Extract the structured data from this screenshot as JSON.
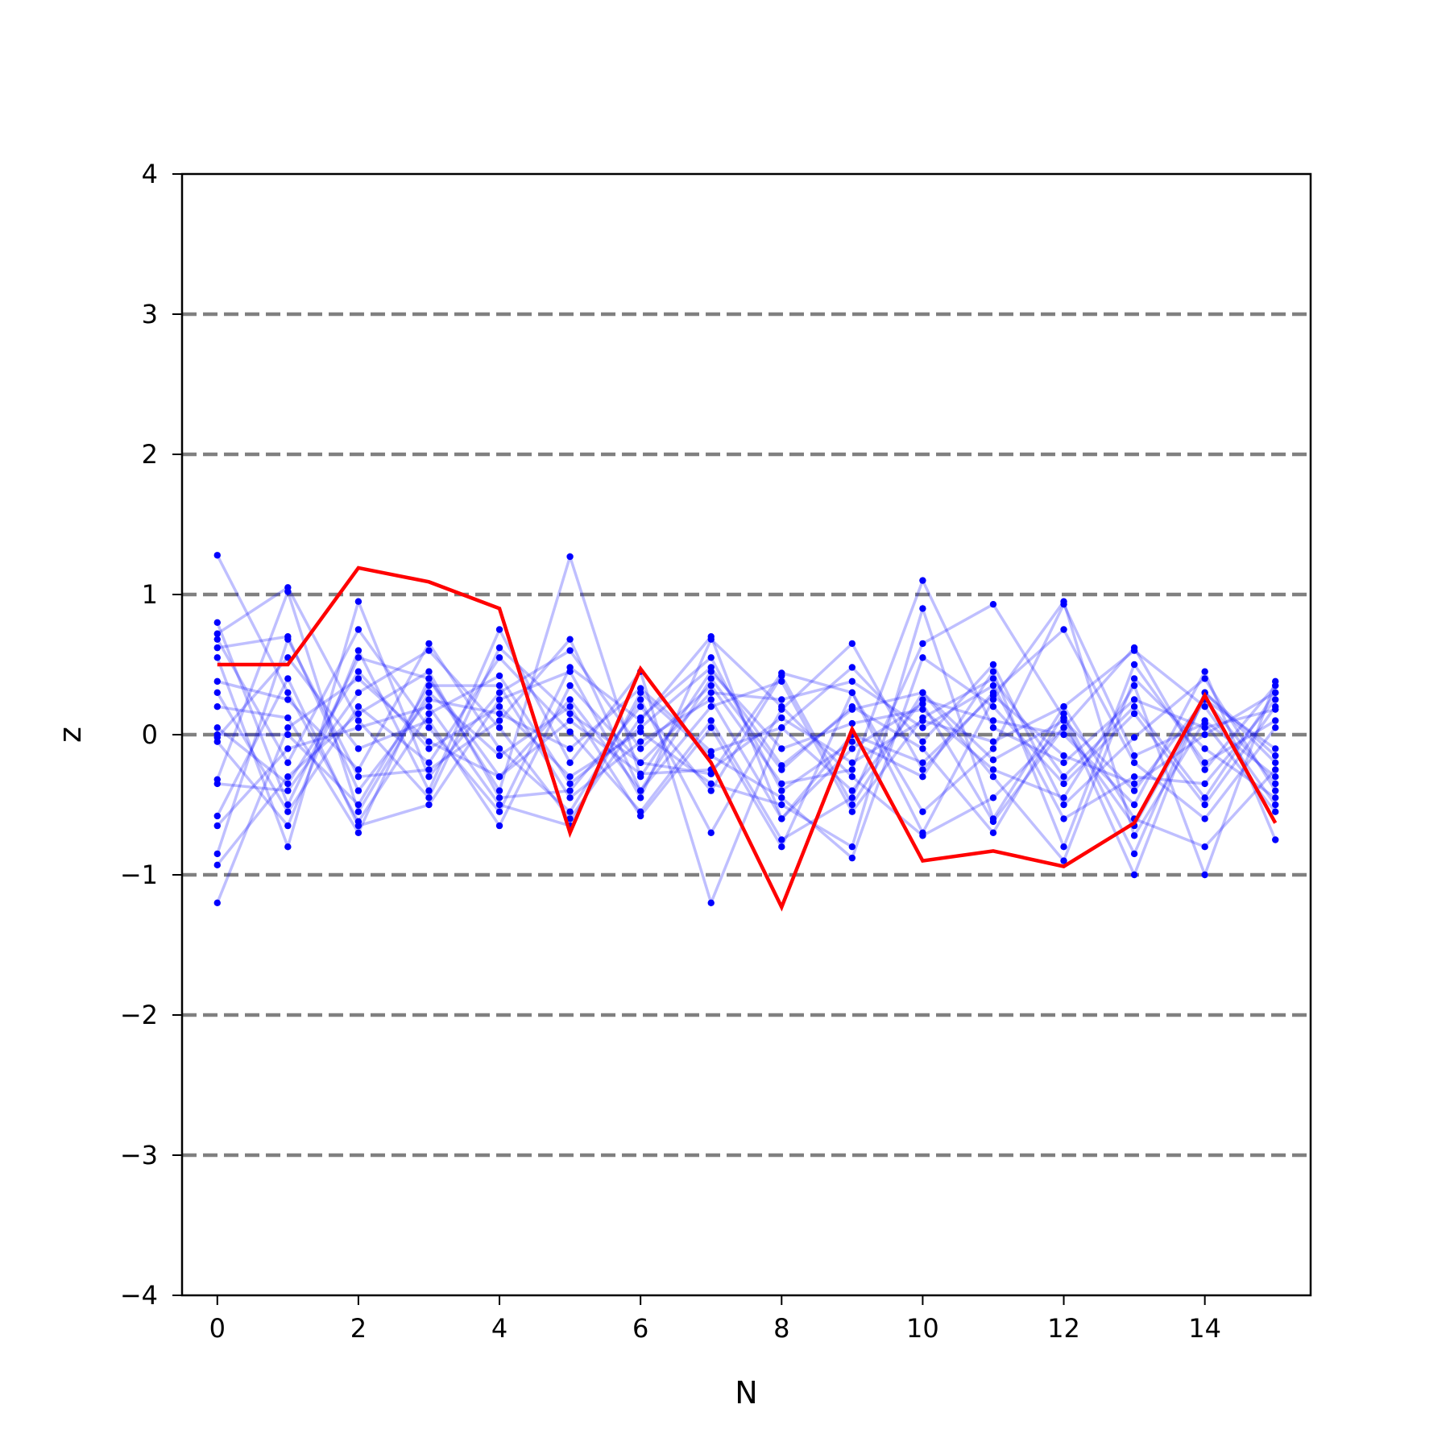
{
  "chart_data": {
    "type": "line",
    "xlabel": "N",
    "ylabel": "z",
    "xlim": [
      -0.5,
      15.5
    ],
    "ylim": [
      -4,
      4
    ],
    "x_ticks": [
      0,
      2,
      4,
      6,
      8,
      10,
      12,
      14
    ],
    "y_ticks": [
      -4,
      -3,
      -2,
      -1,
      0,
      1,
      2,
      3,
      4
    ],
    "y_tick_labels": [
      "−4",
      "−3",
      "−2",
      "−1",
      "0",
      "1",
      "2",
      "3",
      "4"
    ],
    "reference_lines": {
      "y": [
        -3,
        -2,
        -1,
        0,
        1,
        2,
        3
      ],
      "style": "dashed",
      "color": "#808080"
    },
    "x": [
      0,
      1,
      2,
      3,
      4,
      5,
      6,
      7,
      8,
      9,
      10,
      11,
      12,
      13,
      14,
      15
    ],
    "highlight_series": {
      "color": "#ff0000",
      "values": [
        0.5,
        0.5,
        1.19,
        1.09,
        0.9,
        -0.7,
        0.47,
        -0.2,
        -1.23,
        0.04,
        -0.9,
        -0.83,
        -0.94,
        -0.63,
        0.28,
        -0.63
      ]
    },
    "background_series_style": {
      "color": "#0000ff",
      "line_opacity": 0.25,
      "marker": "dot"
    },
    "background_series": [
      {
        "values": [
          1.28,
          0.3,
          -0.62,
          0.15,
          0.42,
          -0.35,
          0.05,
          0.48,
          -0.22,
          0.18,
          0.3,
          -0.18,
          0.1,
          -0.4,
          0.25,
          -0.1
        ]
      },
      {
        "values": [
          0.8,
          -0.5,
          0.55,
          0.4,
          -0.3,
          0.25,
          -0.4,
          0.2,
          0.38,
          -0.55,
          0.12,
          0.4,
          -0.3,
          0.2,
          -0.45,
          0.3
        ]
      },
      {
        "values": [
          0.72,
          1.05,
          0.1,
          -0.45,
          0.62,
          0.15,
          -0.2,
          -0.28,
          0.44,
          0.3,
          -0.7,
          0.25,
          0.95,
          -0.72,
          0.1,
          -0.3
        ]
      },
      {
        "values": [
          0.68,
          -0.2,
          0.75,
          0.05,
          -0.55,
          0.48,
          0.1,
          0.7,
          -0.6,
          -0.1,
          0.22,
          -0.62,
          0.05,
          0.62,
          -0.25,
          0.35
        ]
      },
      {
        "values": [
          0.62,
          0.7,
          -0.4,
          0.25,
          0.15,
          -0.1,
          0.33,
          -0.12,
          0.05,
          0.48,
          -0.05,
          0.5,
          -0.5,
          -0.02,
          0.4,
          -0.4
        ]
      },
      {
        "values": [
          0.55,
          -0.8,
          0.95,
          -0.3,
          0.3,
          0.6,
          -0.1,
          0.35,
          -0.35,
          -0.25,
          1.1,
          0.05,
          -0.2,
          0.25,
          0.05,
          0.18
        ]
      },
      {
        "values": [
          0.38,
          0.25,
          -0.25,
          0.65,
          -0.1,
          -0.55,
          0.25,
          -0.7,
          0.18,
          0.65,
          -0.25,
          0.3,
          0.75,
          -0.2,
          -0.6,
          0.05
        ]
      },
      {
        "values": [
          0.3,
          -0.55,
          0.2,
          -0.2,
          0.55,
          0.02,
          -0.55,
          0.1,
          -0.75,
          -0.45,
          0.65,
          0.93,
          0.12,
          -1.0,
          0.3,
          -0.2
        ]
      },
      {
        "values": [
          0.2,
          0.12,
          -0.7,
          0.4,
          -0.4,
          1.27,
          -0.3,
          0.45,
          -0.1,
          0.08,
          0.18,
          -0.25,
          -0.45,
          0.35,
          -1.0,
          0.38
        ]
      },
      {
        "values": [
          0.05,
          -0.35,
          0.45,
          -0.1,
          0.2,
          -0.3,
          0.02,
          -0.35,
          -0.5,
          -0.8,
          0.9,
          -0.6,
          0.2,
          0.6,
          0.2,
          -0.5
        ]
      },
      {
        "values": [
          -0.02,
          0.55,
          -0.1,
          0.1,
          -0.65,
          0.35,
          -0.2,
          0.3,
          0.25,
          0.38,
          0.05,
          0.35,
          -0.6,
          -0.3,
          -0.35,
          0.25
        ]
      },
      {
        "values": [
          -0.05,
          -0.65,
          0.6,
          -0.4,
          0.75,
          -0.2,
          0.45,
          -1.2,
          0.05,
          -0.4,
          0.25,
          0.1,
          0.0,
          -0.5,
          0.45,
          -0.75
        ]
      },
      {
        "values": [
          -0.32,
          1.02,
          -0.55,
          0.3,
          -0.15,
          0.2,
          -0.58,
          0.05,
          -0.8,
          0.3,
          -0.55,
          -0.1,
          0.93,
          -0.15,
          0.08,
          -0.55
        ]
      },
      {
        "values": [
          -0.35,
          -0.4,
          0.3,
          0.6,
          0.05,
          -0.6,
          0.12,
          0.55,
          -0.4,
          -0.05,
          -0.3,
          0.45,
          -0.8,
          0.5,
          -0.2,
          0.1
        ]
      },
      {
        "values": [
          -0.58,
          0.4,
          -0.65,
          -0.5,
          0.25,
          0.45,
          -0.45,
          0.68,
          0.2,
          -0.3,
          -0.72,
          -0.45,
          0.05,
          -0.65,
          0.25,
          -0.35
        ]
      },
      {
        "values": [
          -0.65,
          -0.1,
          0.05,
          0.2,
          -0.5,
          -0.65,
          0.3,
          -0.15,
          -0.45,
          -0.88,
          0.55,
          0.2,
          -0.35,
          0.15,
          -0.5,
          0.2
        ]
      },
      {
        "values": [
          -0.85,
          0.68,
          -0.3,
          -0.25,
          0.1,
          0.68,
          -0.4,
          0.4,
          -0.25,
          0.2,
          -0.1,
          -0.7,
          0.15,
          -0.85,
          0.3,
          -0.15
        ]
      },
      {
        "values": [
          -0.93,
          -0.3,
          0.15,
          0.45,
          -0.45,
          -0.4,
          0.2,
          -0.4,
          0.42,
          -0.5,
          0.3,
          -0.3,
          -0.9,
          0.4,
          -0.1,
          -0.45
        ]
      },
      {
        "values": [
          0.0,
          0.0,
          -0.5,
          0.35,
          0.35,
          -0.45,
          -0.05,
          0.25,
          -0.6,
          0.0,
          -0.2,
          0.28,
          -0.15,
          -0.35,
          0.0,
          0.3
        ]
      },
      {
        "values": [
          -1.2,
          0.05,
          0.4,
          -0.05,
          -0.3,
          0.1,
          -0.28,
          -0.25,
          0.12,
          -0.2,
          0.1,
          -0.05,
          0.2,
          -0.6,
          -0.8,
          -0.25
        ]
      }
    ]
  }
}
